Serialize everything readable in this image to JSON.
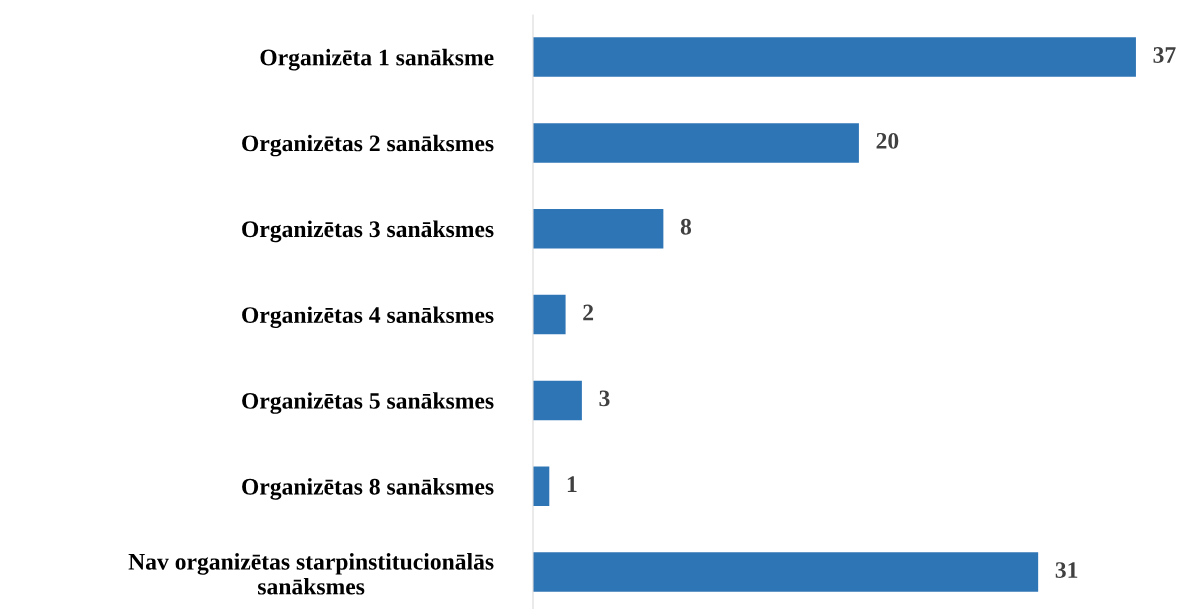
{
  "chart_data": {
    "type": "bar",
    "orientation": "horizontal",
    "categories": [
      "Organizēta 1 sanāksme",
      "Organizētas 2 sanāksmes",
      "Organizētas 3 sanāksmes",
      "Organizētas 4 sanāksmes",
      "Organizētas 5 sanāksmes",
      "Organizētas 8 sanāksmes",
      "Nav organizētas starpinstitucionālās\nsanāksmes"
    ],
    "values": [
      37,
      20,
      8,
      2,
      3,
      1,
      31
    ],
    "color": "#2e75b6",
    "data_labels": true,
    "grid": false,
    "legend": false,
    "tick_labels": "y"
  }
}
